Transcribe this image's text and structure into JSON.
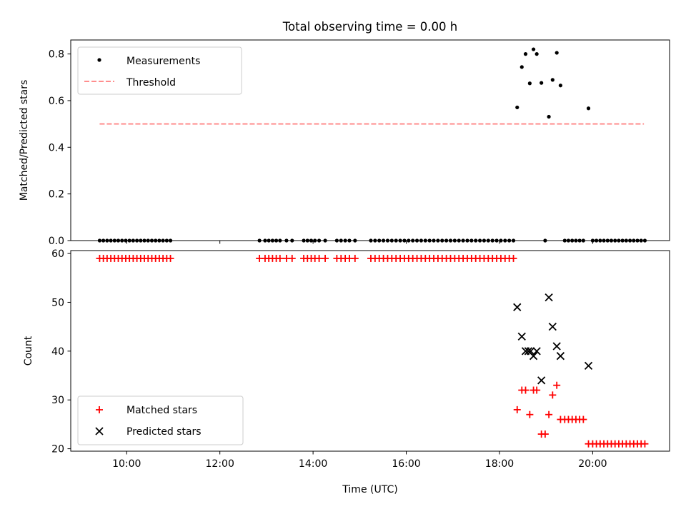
{
  "title": "Total observing time = 0.00 h",
  "chart_data": [
    {
      "type": "scatter",
      "name": "top",
      "ylabel": "Matched/Predicted stars",
      "ylim": [
        0,
        0.86
      ],
      "yticks": [
        0.0,
        0.2,
        0.4,
        0.6,
        0.8
      ],
      "ytick_labels": [
        "0.0",
        "0.2",
        "0.4",
        "0.6",
        "0.8"
      ],
      "legend_position": "upper-left",
      "legend": [
        {
          "label": "Measurements"
        },
        {
          "label": "Threshold"
        }
      ],
      "threshold": {
        "value": 0.5,
        "x_start": 9.42,
        "x_end": 21.1,
        "color": "#ff7f7f"
      },
      "measurements": {
        "x": [
          9.42,
          9.5,
          9.58,
          9.66,
          9.74,
          9.82,
          9.9,
          9.98,
          10.06,
          10.14,
          10.22,
          10.3,
          10.38,
          10.46,
          10.54,
          10.62,
          10.7,
          10.78,
          10.86,
          10.94,
          12.85,
          12.97,
          13.05,
          13.13,
          13.21,
          13.29,
          13.43,
          13.55,
          13.8,
          13.88,
          13.96,
          14.04,
          14.13,
          14.26,
          14.51,
          14.6,
          14.69,
          14.78,
          14.9,
          15.24,
          15.33,
          15.42,
          15.51,
          15.6,
          15.69,
          15.78,
          15.87,
          15.96,
          16.05,
          16.14,
          16.23,
          16.32,
          16.41,
          16.5,
          16.59,
          16.68,
          16.77,
          16.86,
          16.95,
          17.04,
          17.13,
          17.22,
          17.31,
          17.4,
          17.49,
          17.58,
          17.67,
          17.76,
          17.85,
          17.94,
          18.03,
          18.12,
          18.21,
          18.3,
          18.38,
          18.48,
          18.56,
          18.65,
          18.73,
          18.8,
          18.9,
          18.98,
          19.06,
          19.14,
          19.23,
          19.31,
          19.4,
          19.48,
          19.56,
          19.64,
          19.72,
          19.8,
          19.91,
          20.0,
          20.08,
          20.16,
          20.24,
          20.32,
          20.4,
          20.48,
          20.56,
          20.64,
          20.72,
          20.8,
          20.88,
          20.96,
          21.04,
          21.12
        ],
        "y": [
          0,
          0,
          0,
          0,
          0,
          0,
          0,
          0,
          0,
          0,
          0,
          0,
          0,
          0,
          0,
          0,
          0,
          0,
          0,
          0,
          0,
          0,
          0,
          0,
          0,
          0,
          0,
          0,
          0,
          0,
          0,
          0,
          0,
          0,
          0,
          0,
          0,
          0,
          0,
          0,
          0,
          0,
          0,
          0,
          0,
          0,
          0,
          0,
          0,
          0,
          0,
          0,
          0,
          0,
          0,
          0,
          0,
          0,
          0,
          0,
          0,
          0,
          0,
          0,
          0,
          0,
          0,
          0,
          0,
          0,
          0,
          0,
          0,
          0,
          0.571,
          0.744,
          0.8,
          0.674,
          0.82,
          0.8,
          0.676,
          0,
          0.531,
          0.689,
          0.805,
          0.665,
          0,
          0,
          0,
          0,
          0,
          0,
          0.567,
          0,
          0,
          0,
          0,
          0,
          0,
          0,
          0,
          0,
          0,
          0,
          0,
          0,
          0,
          0
        ]
      }
    },
    {
      "type": "scatter",
      "name": "bottom",
      "ylabel": "Count",
      "xlabel": "Time (UTC)",
      "xlim": [
        8.8,
        21.65
      ],
      "xticks": [
        10,
        12,
        14,
        16,
        18,
        20
      ],
      "xtick_labels": [
        "10:00",
        "12:00",
        "14:00",
        "16:00",
        "18:00",
        "20:00"
      ],
      "ylim": [
        19.5,
        60.6
      ],
      "yticks": [
        20,
        30,
        40,
        50,
        60
      ],
      "ytick_labels": [
        "20",
        "30",
        "40",
        "50",
        "60"
      ],
      "legend_position": "lower-left",
      "series": [
        {
          "name": "Matched stars",
          "marker": "plus",
          "color": "#ff0000",
          "x": [
            9.42,
            9.5,
            9.58,
            9.66,
            9.74,
            9.82,
            9.9,
            9.98,
            10.06,
            10.14,
            10.22,
            10.3,
            10.38,
            10.46,
            10.54,
            10.62,
            10.7,
            10.78,
            10.86,
            10.94,
            12.85,
            12.97,
            13.05,
            13.13,
            13.21,
            13.29,
            13.43,
            13.55,
            13.8,
            13.88,
            13.96,
            14.04,
            14.13,
            14.26,
            14.51,
            14.6,
            14.69,
            14.78,
            14.9,
            15.24,
            15.33,
            15.42,
            15.51,
            15.6,
            15.69,
            15.78,
            15.87,
            15.96,
            16.05,
            16.14,
            16.23,
            16.32,
            16.41,
            16.5,
            16.59,
            16.68,
            16.77,
            16.86,
            16.95,
            17.04,
            17.13,
            17.22,
            17.31,
            17.4,
            17.49,
            17.58,
            17.67,
            17.76,
            17.85,
            17.94,
            18.03,
            18.12,
            18.21,
            18.3,
            18.38,
            18.48,
            18.56,
            18.65,
            18.73,
            18.8,
            18.9,
            18.98,
            19.06,
            19.14,
            19.23,
            19.31,
            19.4,
            19.48,
            19.56,
            19.64,
            19.72,
            19.8,
            19.91,
            20.0,
            20.08,
            20.16,
            20.24,
            20.32,
            20.4,
            20.48,
            20.56,
            20.64,
            20.72,
            20.8,
            20.88,
            20.96,
            21.04,
            21.12
          ],
          "y": [
            59,
            59,
            59,
            59,
            59,
            59,
            59,
            59,
            59,
            59,
            59,
            59,
            59,
            59,
            59,
            59,
            59,
            59,
            59,
            59,
            59,
            59,
            59,
            59,
            59,
            59,
            59,
            59,
            59,
            59,
            59,
            59,
            59,
            59,
            59,
            59,
            59,
            59,
            59,
            59,
            59,
            59,
            59,
            59,
            59,
            59,
            59,
            59,
            59,
            59,
            59,
            59,
            59,
            59,
            59,
            59,
            59,
            59,
            59,
            59,
            59,
            59,
            59,
            59,
            59,
            59,
            59,
            59,
            59,
            59,
            59,
            59,
            59,
            59,
            28,
            32,
            32,
            27,
            32,
            32,
            23,
            23,
            27,
            31,
            33,
            26,
            26,
            26,
            26,
            26,
            26,
            26,
            21,
            21,
            21,
            21,
            21,
            21,
            21,
            21,
            21,
            21,
            21,
            21,
            21,
            21,
            21,
            21
          ]
        },
        {
          "name": "Predicted stars",
          "marker": "x",
          "color": "#000000",
          "x": [
            18.38,
            18.48,
            18.56,
            18.62,
            18.67,
            18.73,
            18.8,
            18.9,
            19.06,
            19.14,
            19.23,
            19.31,
            19.91
          ],
          "y": [
            49,
            43,
            40,
            40,
            40,
            39,
            40,
            34,
            51,
            45,
            41,
            39,
            37
          ]
        }
      ]
    }
  ]
}
